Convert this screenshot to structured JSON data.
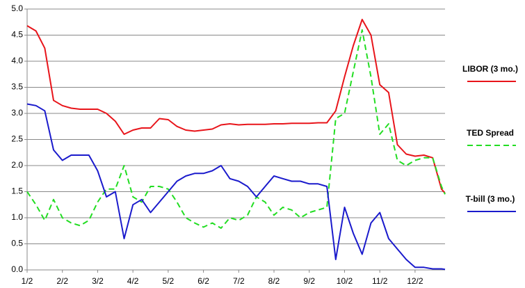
{
  "chart_data": {
    "type": "line",
    "x": [
      0,
      0.25,
      0.5,
      0.75,
      1,
      1.25,
      1.5,
      1.75,
      2,
      2.25,
      2.5,
      2.75,
      3,
      3.25,
      3.5,
      3.75,
      4,
      4.25,
      4.5,
      4.75,
      5,
      5.25,
      5.5,
      5.75,
      6,
      6.25,
      6.5,
      6.75,
      7,
      7.25,
      7.5,
      7.75,
      8,
      8.25,
      8.5,
      8.75,
      9,
      9.25,
      9.5,
      9.75,
      10,
      10.25,
      10.5,
      10.75,
      11,
      11.25,
      11.5,
      11.75,
      11.85
    ],
    "series": [
      {
        "name": "LIBOR (3 mo.)",
        "color": "#e8141a",
        "dash": false,
        "values": [
          4.68,
          4.58,
          4.25,
          3.25,
          3.15,
          3.1,
          3.08,
          3.08,
          3.08,
          3.0,
          2.85,
          2.6,
          2.68,
          2.72,
          2.72,
          2.9,
          2.88,
          2.75,
          2.68,
          2.66,
          2.68,
          2.7,
          2.78,
          2.8,
          2.78,
          2.79,
          2.79,
          2.79,
          2.8,
          2.8,
          2.81,
          2.81,
          2.81,
          2.82,
          2.82,
          3.05,
          3.7,
          4.3,
          4.8,
          4.5,
          3.55,
          3.4,
          2.4,
          2.22,
          2.18,
          2.2,
          2.15,
          1.55,
          1.47
        ]
      },
      {
        "name": "TED Spread",
        "color": "#22dd22",
        "dash": true,
        "values": [
          1.5,
          1.25,
          0.95,
          1.35,
          1.0,
          0.9,
          0.85,
          0.95,
          1.3,
          1.55,
          1.55,
          2.0,
          1.4,
          1.3,
          1.6,
          1.6,
          1.55,
          1.3,
          1.0,
          0.9,
          0.82,
          0.9,
          0.8,
          1.0,
          0.95,
          1.05,
          1.4,
          1.3,
          1.05,
          1.2,
          1.15,
          1.0,
          1.1,
          1.15,
          1.2,
          2.9,
          3.0,
          3.8,
          4.6,
          3.7,
          2.6,
          2.8,
          2.1,
          2.0,
          2.1,
          2.15,
          2.15,
          1.6,
          1.45
        ]
      },
      {
        "name": "T-bill (3 mo.)",
        "color": "#1a1acc",
        "dash": false,
        "values": [
          3.18,
          3.15,
          3.05,
          2.3,
          2.1,
          2.2,
          2.2,
          2.2,
          1.9,
          1.4,
          1.5,
          0.6,
          1.25,
          1.35,
          1.1,
          1.3,
          1.5,
          1.7,
          1.8,
          1.85,
          1.85,
          1.9,
          2.0,
          1.75,
          1.7,
          1.6,
          1.4,
          1.6,
          1.8,
          1.75,
          1.7,
          1.7,
          1.65,
          1.65,
          1.6,
          0.2,
          1.2,
          0.7,
          0.3,
          0.9,
          1.1,
          0.6,
          0.4,
          0.2,
          0.05,
          0.05,
          0.02,
          0.02,
          0.01
        ]
      }
    ],
    "xlim": [
      0,
      11.85
    ],
    "xticks": [
      {
        "value": 0,
        "label": "1/2"
      },
      {
        "value": 1,
        "label": "2/2"
      },
      {
        "value": 2,
        "label": "3/2"
      },
      {
        "value": 3,
        "label": "4/2"
      },
      {
        "value": 4,
        "label": "5/2"
      },
      {
        "value": 5,
        "label": "6/2"
      },
      {
        "value": 6,
        "label": "7/2"
      },
      {
        "value": 7,
        "label": "8/2"
      },
      {
        "value": 8,
        "label": "9/2"
      },
      {
        "value": 9,
        "label": "10/2"
      },
      {
        "value": 10,
        "label": "11/2"
      },
      {
        "value": 11,
        "label": "12/2"
      }
    ],
    "ylim": [
      0,
      5
    ],
    "yticks": [
      {
        "value": 0,
        "label": "0.0"
      },
      0.5,
      {
        "value": 1,
        "label": "1.0"
      },
      1.5,
      {
        "value": 2,
        "label": "2.0"
      },
      2.5,
      {
        "value": 3,
        "label": "3.0"
      },
      3.5,
      {
        "value": 4,
        "label": "4.0"
      },
      4.5,
      {
        "value": 5,
        "label": "5.0"
      }
    ],
    "grid": true
  }
}
